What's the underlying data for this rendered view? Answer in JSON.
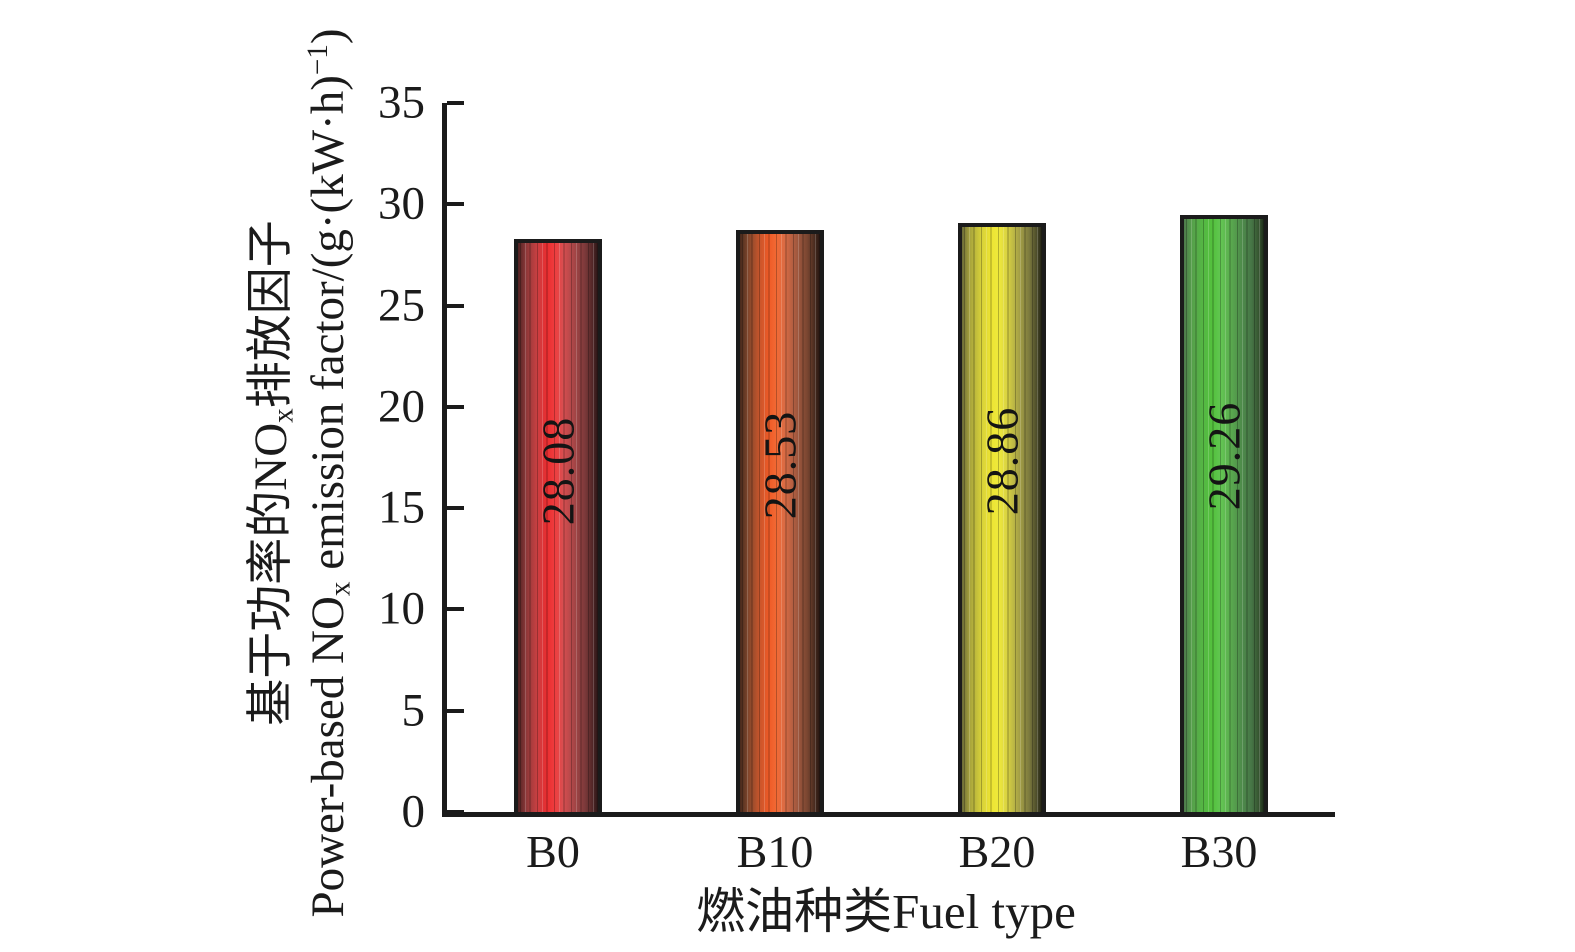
{
  "figure": {
    "background": "#ffffff",
    "axis_color": "#1b1b1b",
    "text_color": "#1b1b1b"
  },
  "y_axis": {
    "title_zh_pre": "基于功率的NO",
    "title_zh_sub": "x",
    "title_zh_post": "排放因子",
    "title_en_pre": "Power-based NO",
    "title_en_sub": "x",
    "title_en_mid": " emission factor/(g·(kW·h)",
    "title_en_sup": "−1",
    "title_en_post": ")"
  },
  "x_axis": {
    "title": "燃油种类Fuel type"
  },
  "chart_data": {
    "type": "bar",
    "title": "",
    "categories": [
      "B0",
      "B10",
      "B20",
      "B30"
    ],
    "values": [
      28.08,
      28.53,
      28.86,
      29.26
    ],
    "value_labels": [
      "28.08",
      "28.53",
      "28.86",
      "29.26"
    ],
    "xlabel": "燃油种类Fuel type",
    "ylabel": "基于功率的NOx排放因子 Power-based NOx emission factor/(g·(kW·h)⁻¹)",
    "ylim": [
      0,
      35
    ],
    "yticks": [
      35,
      30,
      25,
      20,
      15,
      10,
      5,
      0
    ],
    "grid": false,
    "legend": "none",
    "value_label_rotation": -90,
    "bar_gradients": [
      [
        [
          "#4f2222",
          0
        ],
        [
          "#8c3839",
          10
        ],
        [
          "#c94042",
          24
        ],
        [
          "#ea2c2f",
          36
        ],
        [
          "#ef3d3e",
          46
        ],
        [
          "#d94e50",
          56
        ],
        [
          "#a74647",
          70
        ],
        [
          "#7b393a",
          84
        ],
        [
          "#4e2525",
          94
        ],
        [
          "#2a1616",
          100
        ]
      ],
      [
        [
          "#46291c",
          0
        ],
        [
          "#7e462c",
          10
        ],
        [
          "#c6552c",
          24
        ],
        [
          "#ef5a26",
          36
        ],
        [
          "#f26a35",
          46
        ],
        [
          "#d96b44",
          56
        ],
        [
          "#a55a40",
          70
        ],
        [
          "#7a4631",
          84
        ],
        [
          "#452a1e",
          94
        ],
        [
          "#251611",
          100
        ]
      ],
      [
        [
          "#6a6a38",
          0
        ],
        [
          "#a8a43c",
          10
        ],
        [
          "#d6d03a",
          24
        ],
        [
          "#ece432",
          36
        ],
        [
          "#efe93c",
          46
        ],
        [
          "#d9d342",
          56
        ],
        [
          "#aaa546",
          70
        ],
        [
          "#7c7a3e",
          84
        ],
        [
          "#4a4a28",
          94
        ],
        [
          "#1f1f13",
          100
        ]
      ],
      [
        [
          "#4e7a4c",
          0
        ],
        [
          "#56a04b",
          10
        ],
        [
          "#55b844",
          24
        ],
        [
          "#53c13c",
          36
        ],
        [
          "#63c653",
          46
        ],
        [
          "#5cb04f",
          56
        ],
        [
          "#4f8f4b",
          70
        ],
        [
          "#477747",
          84
        ],
        [
          "#35532f",
          94
        ],
        [
          "#1b2817",
          100
        ]
      ]
    ]
  }
}
